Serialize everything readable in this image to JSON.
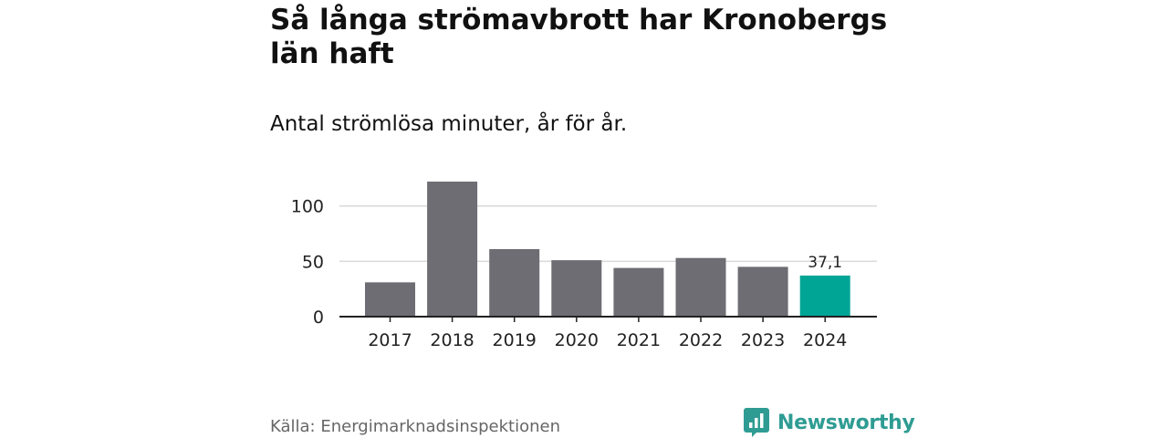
{
  "header": {
    "title": "Så långa strömavbrott har Kronobergs län haft",
    "subtitle": "Antal strömlösa minuter, år för år."
  },
  "footer": {
    "source": "Källa: Energimarknadsinspektionen",
    "brand": "Newsworthy",
    "logo_icon": "bar-chart-speech-bubble-icon"
  },
  "colors": {
    "bar": "#6e6d73",
    "highlight": "#00a596",
    "grid": "#d9d9d9",
    "axis": "#222222",
    "brand": "#2f9c93"
  },
  "chart_data": {
    "type": "bar",
    "categories": [
      "2017",
      "2018",
      "2019",
      "2020",
      "2021",
      "2022",
      "2023",
      "2024"
    ],
    "values": [
      31,
      122,
      61,
      51,
      44,
      53,
      45,
      37.1
    ],
    "highlight_index": 7,
    "data_labels": [
      {
        "index": 7,
        "text": "37,1"
      }
    ],
    "yticks": [
      {
        "value": 0,
        "label": "0"
      },
      {
        "value": 50,
        "label": "50"
      },
      {
        "value": 100,
        "label": "100"
      }
    ],
    "ylim": [
      0,
      125
    ],
    "grid": true,
    "title": "Så långa strömavbrott har Kronobergs län haft",
    "xlabel": "",
    "ylabel": ""
  }
}
